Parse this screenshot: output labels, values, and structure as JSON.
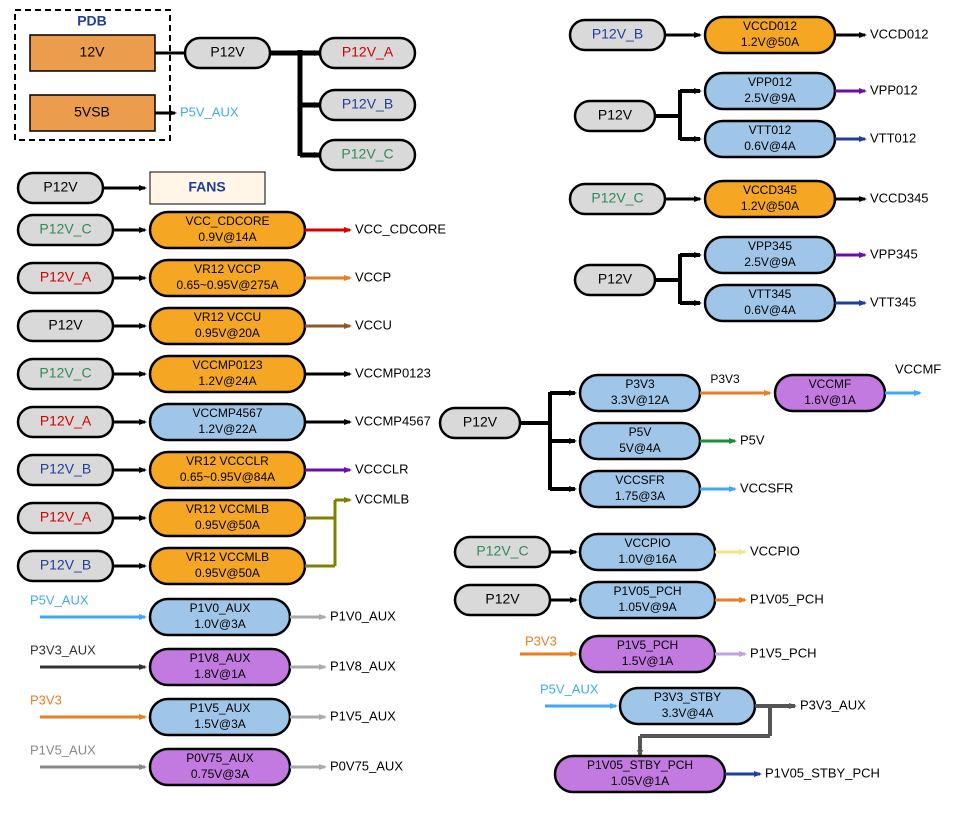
{
  "colors": {
    "grey": "#d9d9d9",
    "orange": "#f5a623",
    "lorange": "#f7c873",
    "oranger": "#eb9c4d",
    "brown": "#8b5a2b",
    "blue": "#9fc5e8",
    "purple": "#c27ae0",
    "teal": "#3fa9f5",
    "green": "#1a8f3a",
    "navy": "#1f3d99",
    "red": "#d40000",
    "olive": "#808000",
    "fgreen": "#2e8b57",
    "black": "#000",
    "darkorange": "#e67e22",
    "lgrey": "#aaaaaa",
    "peach": "#fbe2c5",
    "lpeach": "#fff6e8"
  },
  "pdb": {
    "title": "PDB",
    "b1": "12V",
    "b2": "5VSB",
    "aux": "P5V_AUX"
  },
  "fans": "FANS",
  "p12v_split": {
    "in": "P12V",
    "a": "P12V_A",
    "b": "P12V_B",
    "c": "P12V_C"
  },
  "left_fans_in": "P12V",
  "left_rails": [
    {
      "in": "P12V_C",
      "inC": "green",
      "n1": "VCC_CDCORE",
      "n2": "0.9V@14A",
      "fill": "orange",
      "out": "VCC_CDCORE",
      "ac": "#d40000"
    },
    {
      "in": "P12V_A",
      "inC": "red",
      "n1": "VR12 VCCP",
      "n2": "0.65~0.95V@275A",
      "fill": "orange",
      "out": "VCCP",
      "ac": "#e67e22"
    },
    {
      "in": "P12V",
      "inC": "black",
      "n1": "VR12 VCCU",
      "n2": "0.95V@20A",
      "fill": "orange",
      "out": "VCCU",
      "ac": "#8b5a2b"
    },
    {
      "in": "P12V_C",
      "inC": "green",
      "n1": "VCCMP0123",
      "n2": "1.2V@24A",
      "fill": "orange",
      "out": "VCCMP0123",
      "ac": "#000"
    },
    {
      "in": "P12V_A",
      "inC": "red",
      "n1": "VCCMP4567",
      "n2": "1.2V@22A",
      "fill": "blue",
      "out": "VCCMP4567",
      "ac": "#000"
    },
    {
      "in": "P12V_B",
      "inC": "navy",
      "n1": "VR12 VCCCLR",
      "n2": "0.65~0.95V@84A",
      "fill": "orange",
      "out": "VCCCLR",
      "ac": "#6a0dad"
    },
    {
      "in": "P12V_A",
      "inC": "red",
      "n1": "VR12 VCCMLB",
      "n2": "0.95V@50A",
      "fill": "orange",
      "out": "VCCMLB",
      "ac": "#808000"
    },
    {
      "in": "P12V_B",
      "inC": "navy",
      "n1": "VR12 VCCMLB",
      "n2": "0.95V@50A",
      "fill": "orange",
      "out": "",
      "ac": "#808000"
    }
  ],
  "left_aux": [
    {
      "in": "P5V_AUX",
      "inC": "#3fa9f5",
      "n1": "P1V0_AUX",
      "n2": "1.0V@3A",
      "fill": "blue",
      "out": "P1V0_AUX",
      "ac": "#aaaaaa"
    },
    {
      "in": "P3V3_AUX",
      "inC": "#333",
      "n1": "P1V8_AUX",
      "n2": "1.8V@1A",
      "fill": "purple",
      "out": "P1V8_AUX",
      "ac": "#aaaaaa"
    },
    {
      "in": "P3V3",
      "inC": "#e67e22",
      "n1": "P1V5_AUX",
      "n2": "1.5V@3A",
      "fill": "blue",
      "out": "P1V5_AUX",
      "ac": "#aaaaaa"
    },
    {
      "in": "P1V5_AUX",
      "inC": "#888",
      "n1": "P0V75_AUX",
      "n2": "0.75V@3A",
      "fill": "purple",
      "out": "P0V75_AUX",
      "ac": "#aaaaaa"
    }
  ],
  "right_top": [
    {
      "in": "P12V_B",
      "inC": "navy",
      "single": true,
      "n1": "VCCD012",
      "n2": "1.2V@50A",
      "fill": "orange",
      "out": "VCCD012",
      "ac": "#000"
    },
    {
      "in": "P12V",
      "inC": "black",
      "pair": [
        {
          "n1": "VPP012",
          "n2": "2.5V@9A",
          "fill": "blue",
          "out": "VPP012",
          "ac": "#6a0dad"
        },
        {
          "n1": "VTT012",
          "n2": "0.6V@4A",
          "fill": "blue",
          "out": "VTT012",
          "ac": "#1f3d99"
        }
      ]
    },
    {
      "in": "P12V_C",
      "inC": "green",
      "single": true,
      "n1": "VCCD345",
      "n2": "1.2V@50A",
      "fill": "orange",
      "out": "VCCD345",
      "ac": "#000"
    },
    {
      "in": "P12V",
      "inC": "black",
      "pair": [
        {
          "n1": "VPP345",
          "n2": "2.5V@9A",
          "fill": "blue",
          "out": "VPP345",
          "ac": "#6a0dad"
        },
        {
          "n1": "VTT345",
          "n2": "0.6V@4A",
          "fill": "blue",
          "out": "VTT345",
          "ac": "#1f3d99"
        }
      ]
    }
  ],
  "mid": {
    "in": "P12V",
    "triple": [
      {
        "n1": "P3V3",
        "n2": "3.3V@12A",
        "fill": "blue",
        "lab": "P3V3",
        "ac": "#e67e22",
        "chain": {
          "n1": "VCCMF",
          "n2": "1.6V@1A",
          "fill": "purple",
          "out": "VCCMF",
          "ac": "#3fa9f5"
        }
      },
      {
        "n1": "P5V",
        "n2": "5V@4A",
        "fill": "blue",
        "out": "P5V",
        "ac": "#1a8f3a"
      },
      {
        "n1": "VCCSFR",
        "n2": "1.75@3A",
        "fill": "blue",
        "out": "VCCSFR",
        "ac": "#3fa9f5"
      }
    ]
  },
  "mid2": [
    {
      "in": "P12V_C",
      "inC": "green",
      "n1": "VCCPIO",
      "n2": "1.0V@16A",
      "fill": "blue",
      "out": "VCCPIO",
      "ac": "#f0e68c"
    },
    {
      "in": "P12V",
      "inC": "black",
      "n1": "P1V05_PCH",
      "n2": "1.05V@9A",
      "fill": "blue",
      "out": "P1V05_PCH",
      "ac": "#e67e22"
    },
    {
      "in": "P3V3",
      "inC": "#e67e22",
      "arrow": true,
      "n1": "P1V5_PCH",
      "n2": "1.5V@1A",
      "fill": "purple",
      "out": "P1V5_PCH",
      "ac": "#c0a0e0"
    }
  ],
  "stby": {
    "in": "P5V_AUX",
    "inC": "#3fa9f5",
    "a": {
      "n1": "P3V3_STBY",
      "n2": "3.3V@4A",
      "fill": "blue",
      "out": "P3V3_AUX",
      "ac": "#555"
    },
    "b": {
      "n1": "P1V05_STBY_PCH",
      "n2": "1.05V@1A",
      "fill": "purple",
      "out": "P1V05_STBY_PCH",
      "ac": "#1f3d99"
    }
  }
}
